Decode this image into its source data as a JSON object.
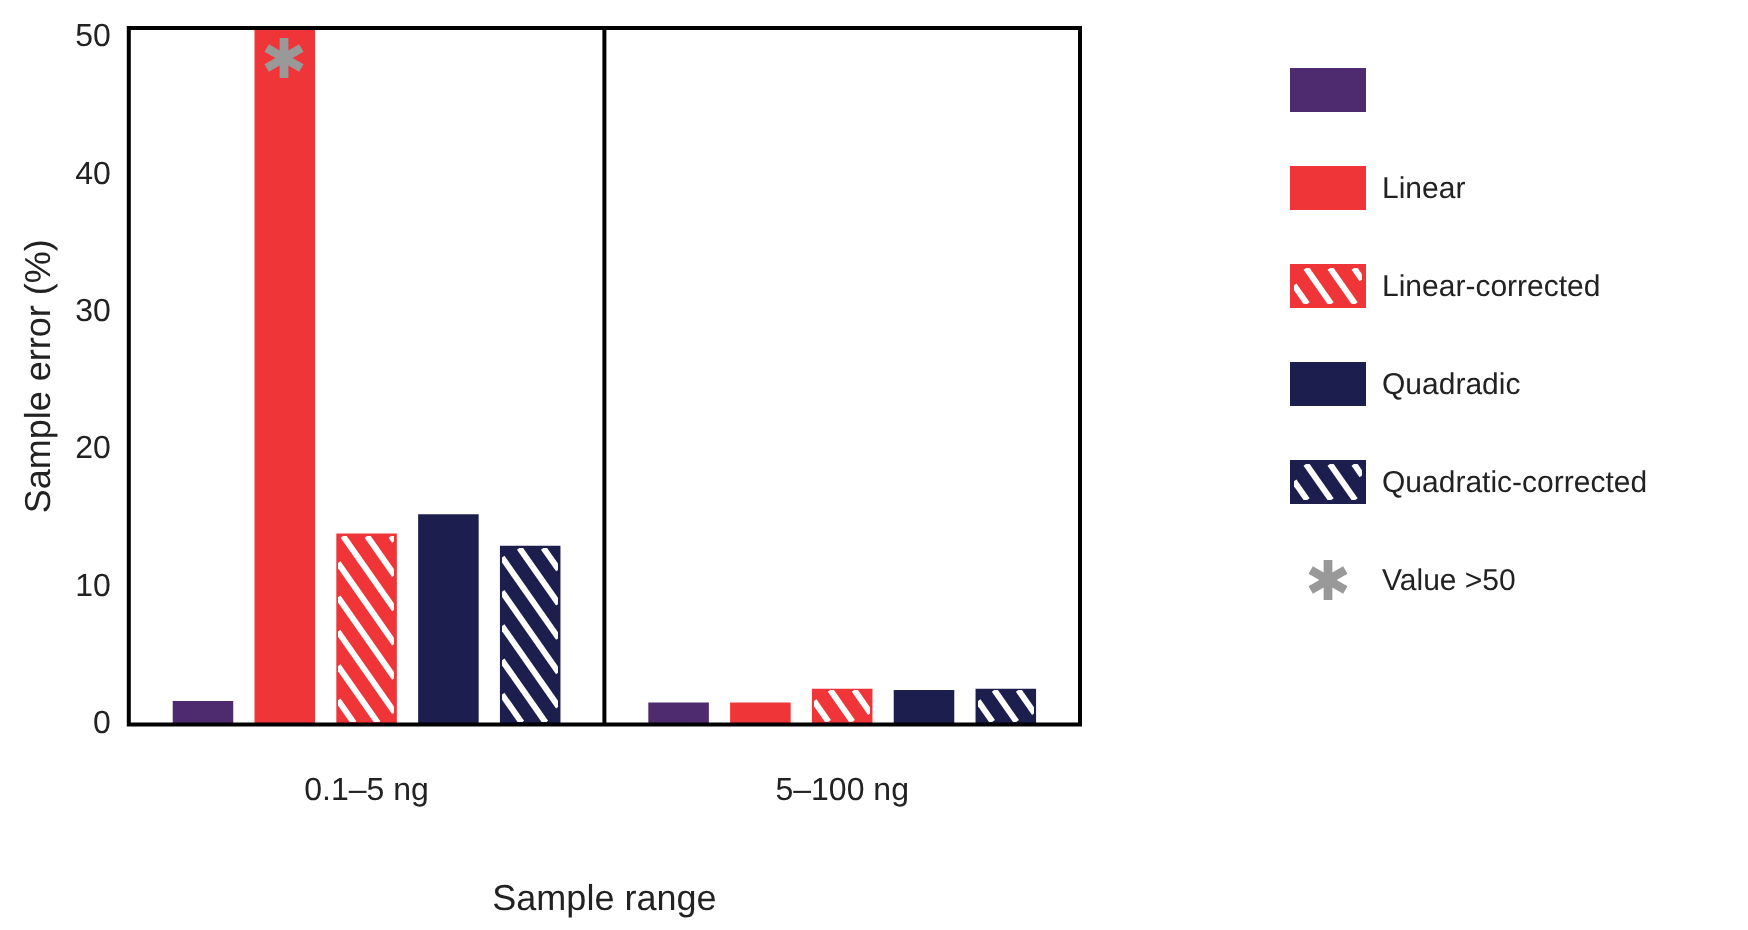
{
  "chart_data": {
    "type": "bar",
    "xlabel": "Sample range",
    "ylabel": "Sample error (%)",
    "categories": [
      "0.1–5 ng",
      "5–100 ng"
    ],
    "series": [
      {
        "color": "#4e2a6e",
        "values": [
          1.7,
          1.6
        ]
      },
      {
        "name": "Linear",
        "color": "#f03538",
        "values": [
          50.7,
          1.6
        ]
      },
      {
        "name": "Linear-corrected",
        "color": "#f03538",
        "values": [
          13.9,
          2.6
        ]
      },
      {
        "name": "Quadradic",
        "color": "#1c1f4d",
        "values": [
          15.3,
          2.5
        ]
      },
      {
        "name": "Quadratic-corrected",
        "color": "#1c1f4d",
        "values": [
          13.0,
          2.6
        ]
      }
    ],
    "ylim": [
      0,
      50.7
    ],
    "yticks": [
      0,
      10,
      20,
      30,
      40,
      50
    ],
    "grid": false,
    "legend": "right",
    "annotations": [
      "Value >50"
    ]
  }
}
